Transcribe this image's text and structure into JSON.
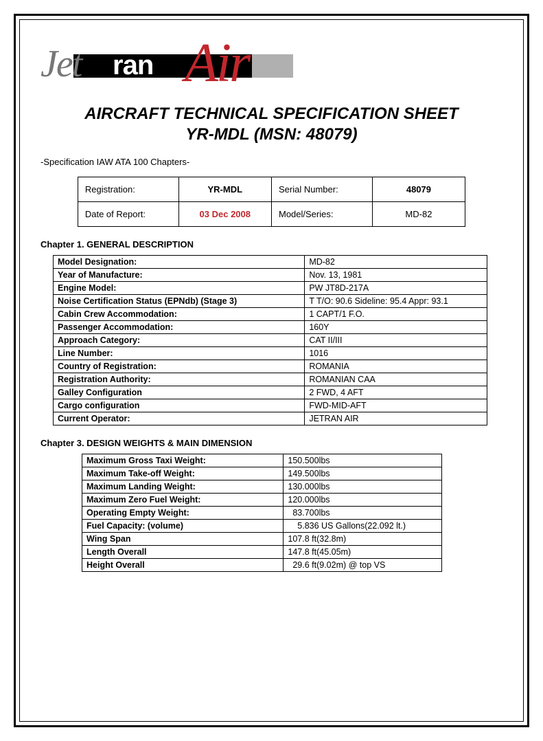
{
  "logo": {
    "part1": "Jet",
    "part2": "ran",
    "part3": "Air"
  },
  "title": "AIRCRAFT TECHNICAL SPECIFICATION SHEET",
  "subtitle": "YR-MDL (MSN: 48079)",
  "spec_line": "-Specification IAW ATA 100 Chapters-",
  "header": {
    "reg_label": "Registration:",
    "reg_value": "YR-MDL",
    "sn_label": "Serial Number:",
    "sn_value": "48079",
    "date_label": "Date of Report:",
    "date_value": "03 Dec 2008",
    "model_label": "Model/Series:",
    "model_value": "MD-82"
  },
  "chapter1": {
    "heading": "Chapter 1. GENERAL DESCRIPTION",
    "rows": [
      {
        "k": "Model Designation:",
        "v": "MD-82"
      },
      {
        "k": "Year of Manufacture:",
        "v": "Nov. 13, 1981"
      },
      {
        "k": "Engine Model:",
        "v": "PW JT8D-217A"
      },
      {
        "k": "Noise Certification Status (EPNdb) (Stage 3)",
        "v": "T T/O: 90.6  Sideline:  95.4  Appr: 93.1"
      },
      {
        "k": "Cabin Crew Accommodation:",
        "v": "1 CAPT/1 F.O."
      },
      {
        "k": "Passenger Accommodation:",
        "v": "160Y"
      },
      {
        "k": "Approach Category:",
        "v": "CAT II/III"
      },
      {
        "k": "Line Number:",
        "v": "1016"
      },
      {
        "k": "Country of Registration:",
        "v": "ROMANIA"
      },
      {
        "k": "Registration Authority:",
        "v": "ROMANIAN CAA"
      },
      {
        "k": "Galley Configuration",
        "v": "2 FWD, 4 AFT"
      },
      {
        "k": "Cargo configuration",
        "v": "FWD-MID-AFT"
      },
      {
        "k": "Current Operator:",
        "v": "JETRAN AIR"
      }
    ]
  },
  "chapter3": {
    "heading": "Chapter 3. DESIGN WEIGHTS & MAIN DIMENSION",
    "rows": [
      {
        "k": "Maximum Gross Taxi Weight:",
        "v": "150.500lbs"
      },
      {
        "k": "Maximum Take-off Weight:",
        "v": "149.500lbs"
      },
      {
        "k": "Maximum Landing Weight:",
        "v": "130.000lbs"
      },
      {
        "k": "Maximum Zero Fuel Weight:",
        "v": "120.000lbs"
      },
      {
        "k": "Operating Empty Weight:",
        "v": "  83.700lbs"
      },
      {
        "k": "Fuel Capacity:  (volume)",
        "v": "    5.836 US Gallons(22.092 lt.)"
      },
      {
        "k": "Wing Span",
        "v": "107.8 ft(32.8m)"
      },
      {
        "k": "Length Overall",
        "v": "147.8 ft(45.05m)"
      },
      {
        "k": "Height Overall",
        "v": "  29.6 ft(9.02m) @ top VS"
      }
    ]
  },
  "colors": {
    "accent_red": "#c1272d",
    "border": "#000000",
    "gray": "#777777"
  }
}
